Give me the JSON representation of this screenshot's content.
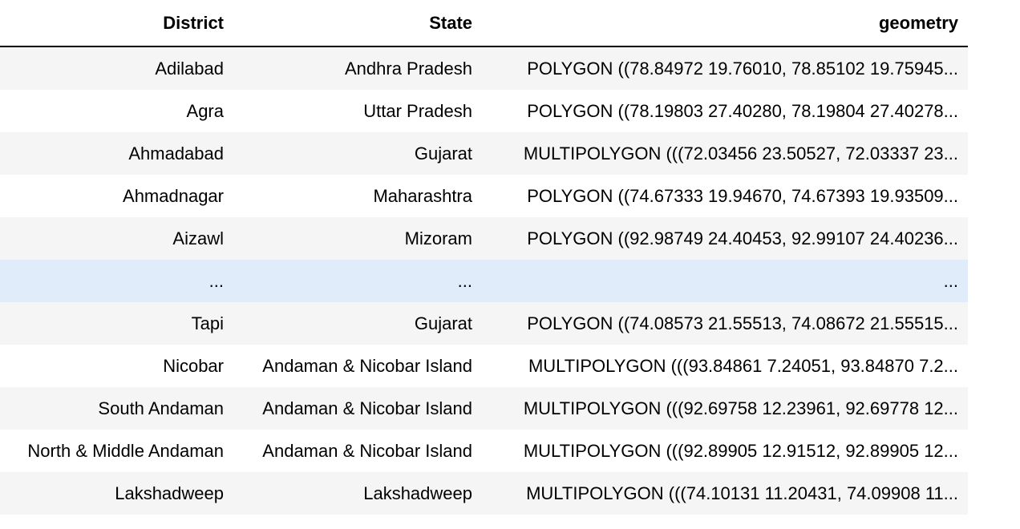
{
  "table": {
    "columns": [
      "District",
      "State",
      "geometry"
    ],
    "rows": [
      [
        "Adilabad",
        "Andhra Pradesh",
        "POLYGON ((78.84972 19.76010, 78.85102 19.75945..."
      ],
      [
        "Agra",
        "Uttar Pradesh",
        "POLYGON ((78.19803 27.40280, 78.19804 27.40278..."
      ],
      [
        "Ahmadabad",
        "Gujarat",
        "MULTIPOLYGON (((72.03456 23.50527, 72.03337 23..."
      ],
      [
        "Ahmadnagar",
        "Maharashtra",
        "POLYGON ((74.67333 19.94670, 74.67393 19.93509..."
      ],
      [
        "Aizawl",
        "Mizoram",
        "POLYGON ((92.98749 24.40453, 92.99107 24.40236..."
      ],
      [
        "...",
        "...",
        "..."
      ],
      [
        "Tapi",
        "Gujarat",
        "POLYGON ((74.08573 21.55513, 74.08672 21.55515..."
      ],
      [
        "Nicobar",
        "Andaman & Nicobar Island",
        "MULTIPOLYGON (((93.84861 7.24051, 93.84870 7.2..."
      ],
      [
        "South Andaman",
        "Andaman & Nicobar Island",
        "MULTIPOLYGON (((92.69758 12.23961, 92.69778 12..."
      ],
      [
        "North & Middle Andaman",
        "Andaman & Nicobar Island",
        "MULTIPOLYGON (((92.89905 12.91512, 92.89905 12..."
      ],
      [
        "Lakshadweep",
        "Lakshadweep",
        "MULTIPOLYGON (((74.10131 11.20431, 74.09908 11..."
      ]
    ],
    "highlighted_row": 5,
    "colors": {
      "stripe": "#f5f5f5",
      "hover": "#e1ecfa",
      "header_border": "#000000"
    }
  }
}
